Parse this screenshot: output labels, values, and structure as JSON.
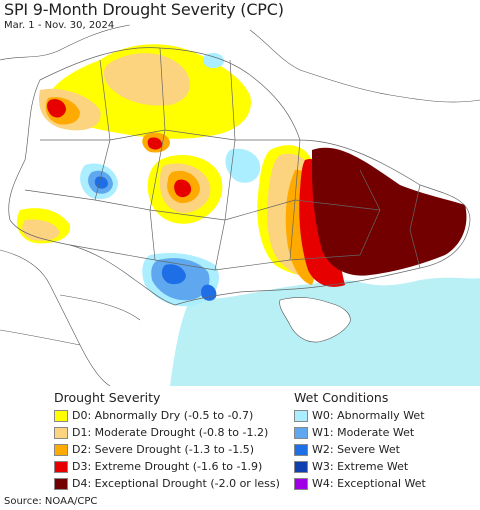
{
  "title": "SPI 9-Month Drought Severity (CPC)",
  "subtitle": "Mar. 1 - Nov. 30, 2024",
  "legend": {
    "drought_heading": "Drought Severity",
    "wet_heading": "Wet Conditions",
    "drought_items": [
      {
        "label": "D0: Abnormally Dry (-0.5 to -0.7)",
        "color": "#ffff00"
      },
      {
        "label": "D1: Moderate Drought (-0.8 to -1.2)",
        "color": "#fcd37f"
      },
      {
        "label": "D2: Severe Drought (-1.3 to -1.5)",
        "color": "#ffaa00"
      },
      {
        "label": "D3: Extreme Drought (-1.6 to -1.9)",
        "color": "#e60000"
      },
      {
        "label": "D4: Exceptional Drought (-2.0 or less)",
        "color": "#730000"
      }
    ],
    "wet_items": [
      {
        "label": "W0: Abnormally Wet",
        "color": "#aaeeff"
      },
      {
        "label": "W1: Moderate Wet",
        "color": "#5fa8f0"
      },
      {
        "label": "W2: Severe Wet",
        "color": "#1e6fe6"
      },
      {
        "label": "W3: Extreme Wet",
        "color": "#1040b0"
      },
      {
        "label": "W4: Exceptional Wet",
        "color": "#a000e6"
      }
    ]
  },
  "source": "Source: NOAA/CPC",
  "colors": {
    "sea": "#b8f0f5",
    "land_outside": "#ffffff",
    "border": "#555555"
  }
}
